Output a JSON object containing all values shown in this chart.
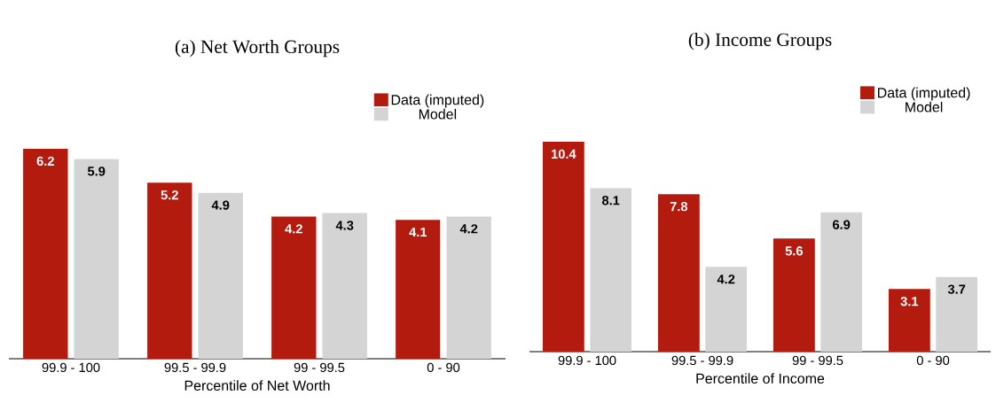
{
  "chart_data": [
    {
      "type": "bar",
      "title": "(a) Net Worth Groups",
      "xlabel": "Percentile of Net Worth",
      "categories": [
        "99.9 - 100",
        "99.5 - 99.9",
        "99 - 99.5",
        "0 - 90"
      ],
      "series": [
        {
          "name": "Data (imputed)",
          "color": "#b31b0f",
          "values": [
            6.2,
            5.2,
            4.2,
            4.1
          ]
        },
        {
          "name": "Model",
          "color": "#d4d4d4",
          "values": [
            5.9,
            4.9,
            4.3,
            4.2
          ]
        }
      ],
      "legend": "top right",
      "tick_labels": "x",
      "data_labels": true
    },
    {
      "type": "bar",
      "title": "(b) Income Groups",
      "xlabel": "Percentile of Income",
      "categories": [
        "99.9 - 100",
        "99.5 - 99.9",
        "99 - 99.5",
        "0 - 90"
      ],
      "series": [
        {
          "name": "Data (imputed)",
          "color": "#b31b0f",
          "values": [
            10.4,
            7.8,
            5.6,
            3.1
          ]
        },
        {
          "name": "Model",
          "color": "#d4d4d4",
          "values": [
            8.1,
            4.2,
            6.9,
            3.7
          ]
        }
      ],
      "legend": "top right",
      "tick_labels": "x",
      "data_labels": true
    }
  ]
}
